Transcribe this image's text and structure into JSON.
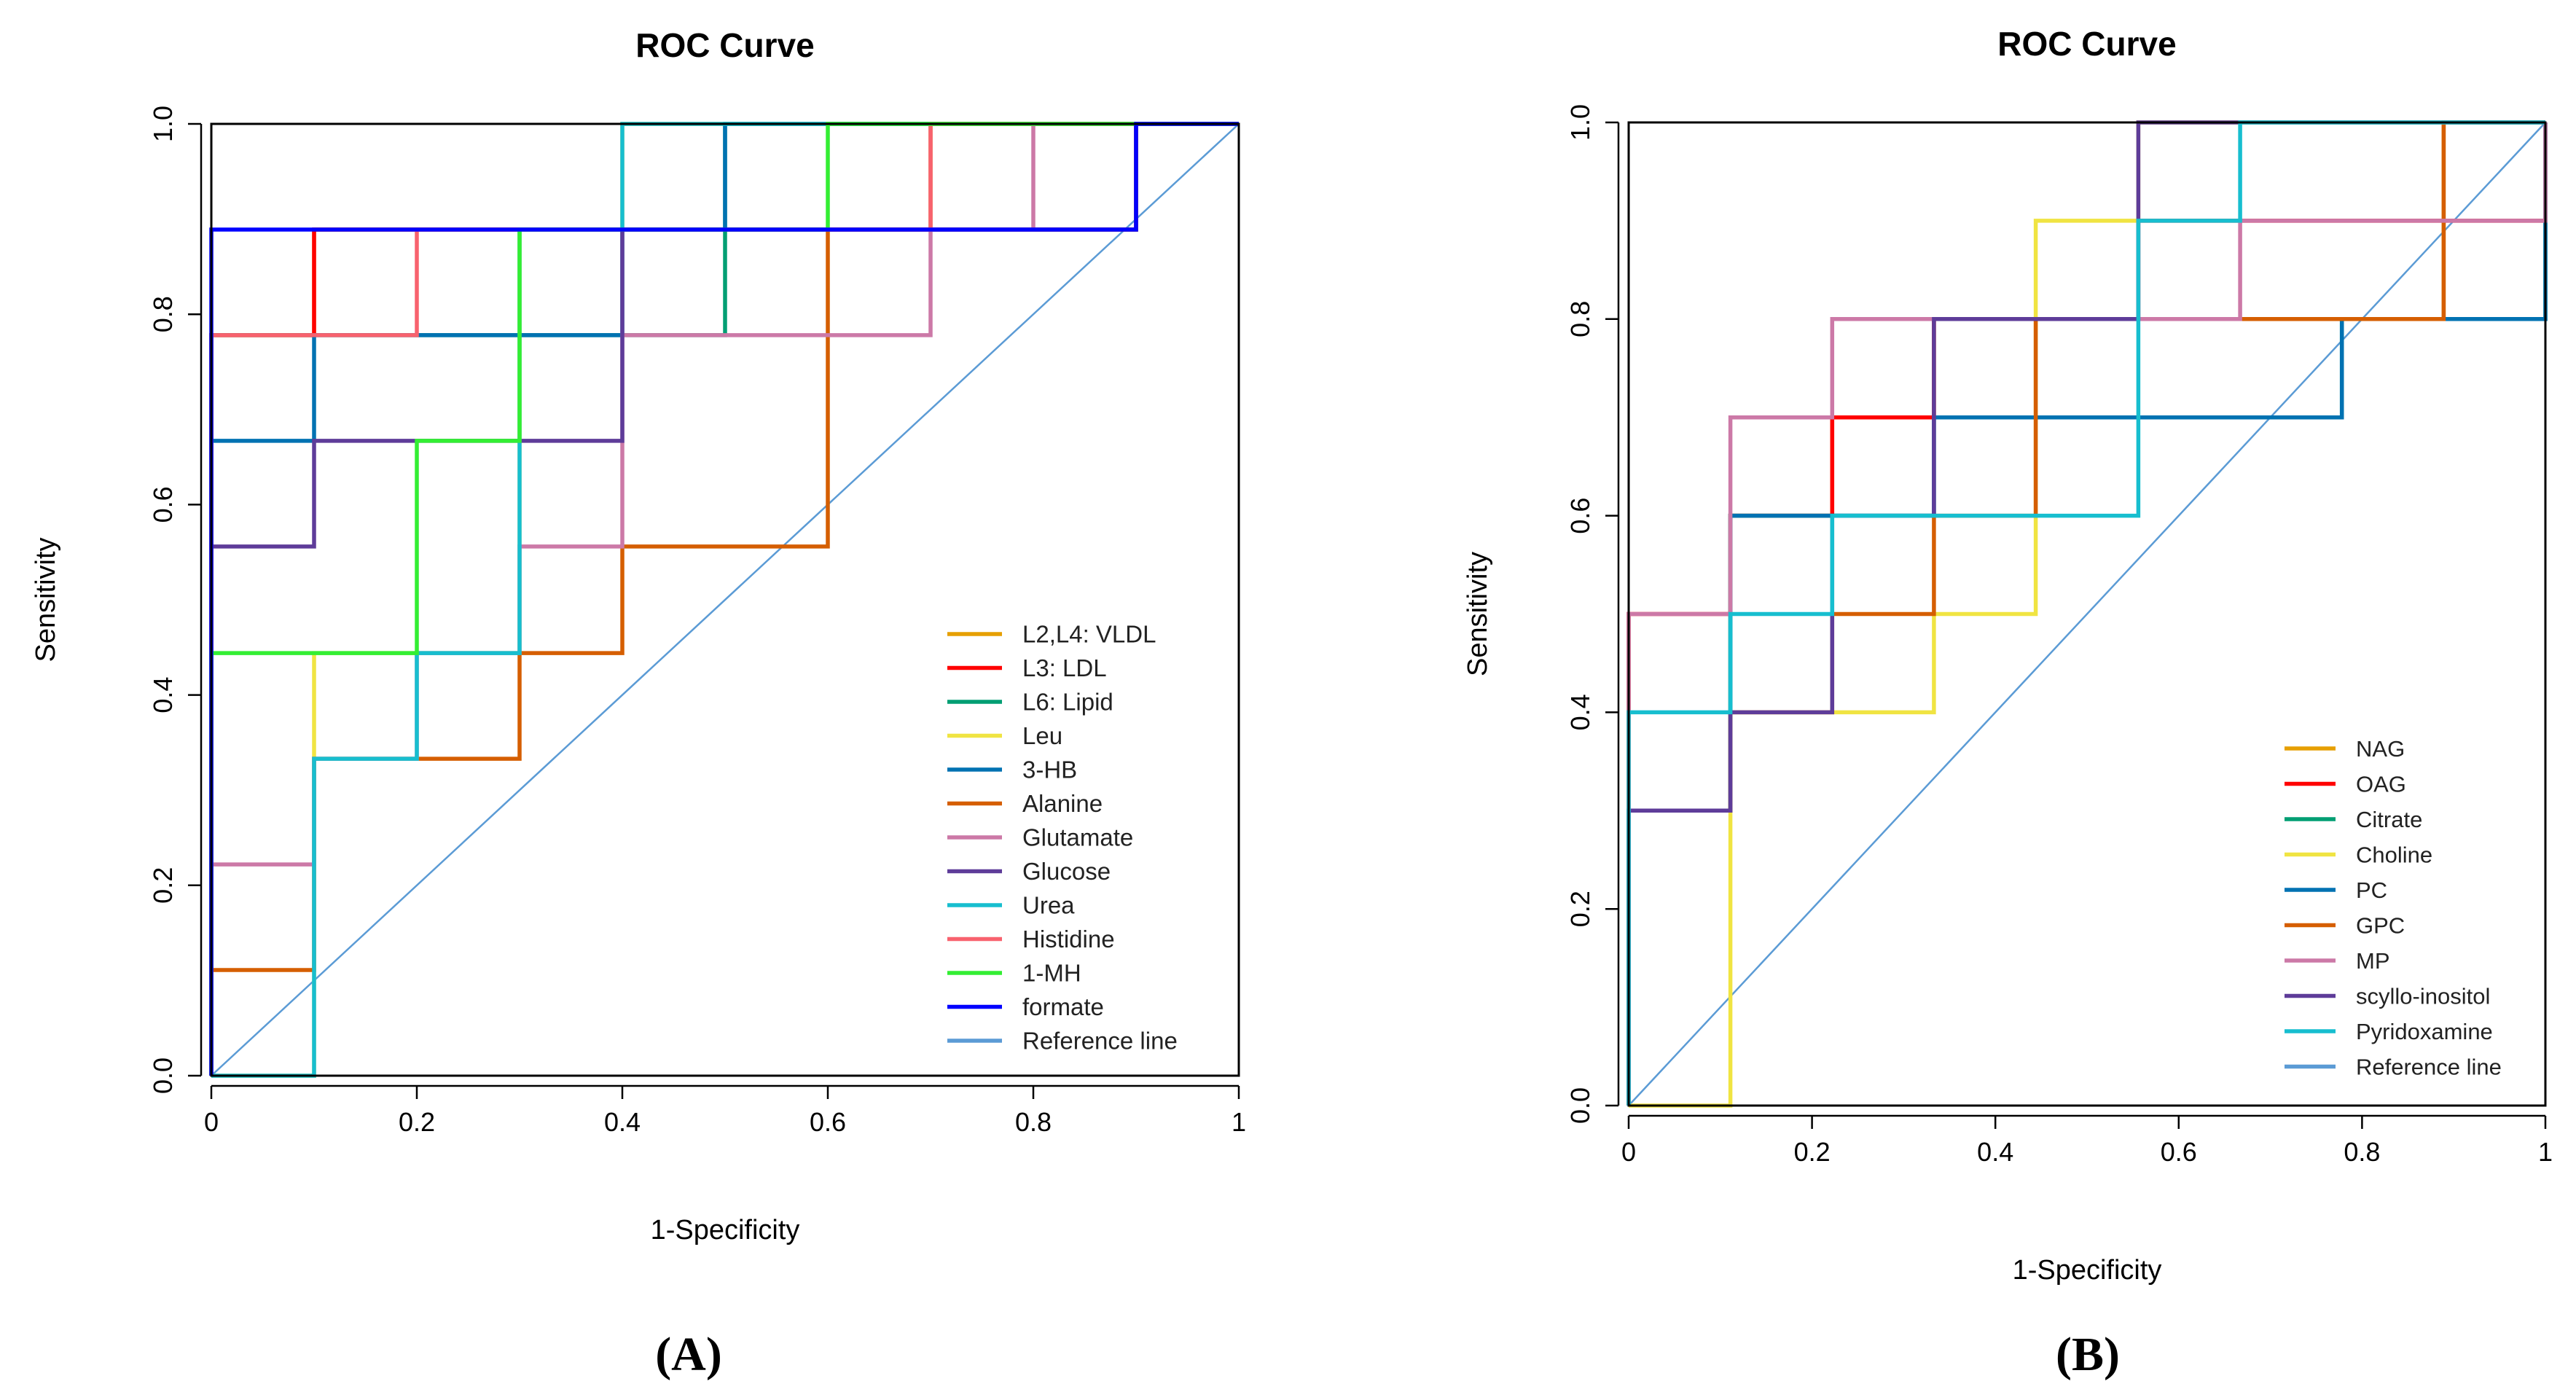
{
  "figure": {
    "panel_labels": [
      "(A)",
      "(B)"
    ]
  },
  "chart_data": [
    {
      "type": "line",
      "subtype": "roc-step",
      "title": "ROC Curve",
      "xlabel": "1-Specificity",
      "ylabel": "Sensitivity",
      "xlim": [
        0,
        1
      ],
      "ylim": [
        0,
        1
      ],
      "x_ticks": [
        "0",
        "0.2",
        "0.4",
        "0.6",
        "0.8",
        "1"
      ],
      "y_ticks": [
        "0.0",
        "0.2",
        "0.4",
        "0.6",
        "0.8",
        "1.0"
      ],
      "legend_position": "bottom-right",
      "series": [
        {
          "name": "L2,L4: VLDL",
          "color": "#E69F00",
          "points": [
            [
              0,
              0
            ],
            [
              0,
              0.778
            ],
            [
              0.1,
              0.778
            ],
            [
              0.1,
              0.889
            ],
            [
              0.9,
              0.889
            ],
            [
              0.9,
              1
            ],
            [
              1,
              1
            ]
          ]
        },
        {
          "name": "L3: LDL",
          "color": "#FF0000",
          "points": [
            [
              0,
              0
            ],
            [
              0,
              0.778
            ],
            [
              0.1,
              0.778
            ],
            [
              0.1,
              0.889
            ],
            [
              0.9,
              0.889
            ],
            [
              0.9,
              1
            ],
            [
              1,
              1
            ]
          ]
        },
        {
          "name": "L6: Lipid",
          "color": "#009E73",
          "points": [
            [
              0,
              0
            ],
            [
              0,
              0.778
            ],
            [
              0.4,
              0.778
            ],
            [
              0.5,
              0.778
            ],
            [
              0.5,
              1
            ],
            [
              1,
              1
            ]
          ]
        },
        {
          "name": "Leu",
          "color": "#F0E442",
          "points": [
            [
              0,
              0
            ],
            [
              0.1,
              0
            ],
            [
              0.1,
              0.444
            ],
            [
              0.3,
              0.444
            ],
            [
              0.3,
              0.889
            ],
            [
              0.4,
              0.889
            ],
            [
              0.4,
              1
            ],
            [
              1,
              1
            ]
          ]
        },
        {
          "name": "3-HB",
          "color": "#0072B2",
          "points": [
            [
              0,
              0
            ],
            [
              0,
              0.667
            ],
            [
              0.1,
              0.667
            ],
            [
              0.1,
              0.778
            ],
            [
              0.4,
              0.778
            ],
            [
              0.4,
              0.889
            ],
            [
              0.5,
              0.889
            ],
            [
              0.5,
              1
            ],
            [
              1,
              1
            ]
          ]
        },
        {
          "name": "Alanine",
          "color": "#D55E00",
          "points": [
            [
              0,
              0
            ],
            [
              0,
              0.111
            ],
            [
              0.1,
              0.111
            ],
            [
              0.1,
              0.333
            ],
            [
              0.3,
              0.333
            ],
            [
              0.3,
              0.444
            ],
            [
              0.4,
              0.444
            ],
            [
              0.4,
              0.556
            ],
            [
              0.6,
              0.556
            ],
            [
              0.6,
              0.889
            ],
            [
              0.7,
              0.889
            ],
            [
              0.7,
              1
            ],
            [
              1,
              1
            ]
          ]
        },
        {
          "name": "Glutamate",
          "color": "#CC79A7",
          "points": [
            [
              0,
              0
            ],
            [
              0,
              0.222
            ],
            [
              0.1,
              0.222
            ],
            [
              0.1,
              0.333
            ],
            [
              0.2,
              0.333
            ],
            [
              0.2,
              0.444
            ],
            [
              0.3,
              0.444
            ],
            [
              0.3,
              0.556
            ],
            [
              0.4,
              0.556
            ],
            [
              0.4,
              0.778
            ],
            [
              0.7,
              0.778
            ],
            [
              0.7,
              0.889
            ],
            [
              0.8,
              0.889
            ],
            [
              0.8,
              1
            ],
            [
              1,
              1
            ]
          ]
        },
        {
          "name": "Glucose",
          "color": "#5E3C99",
          "points": [
            [
              0,
              0
            ],
            [
              0,
              0.556
            ],
            [
              0.1,
              0.556
            ],
            [
              0.1,
              0.667
            ],
            [
              0.4,
              0.667
            ],
            [
              0.4,
              0.889
            ],
            [
              0.9,
              0.889
            ],
            [
              0.9,
              1
            ],
            [
              1,
              1
            ]
          ]
        },
        {
          "name": "Urea",
          "color": "#17BECF",
          "points": [
            [
              0,
              0
            ],
            [
              0.1,
              0
            ],
            [
              0.1,
              0.333
            ],
            [
              0.2,
              0.333
            ],
            [
              0.2,
              0.444
            ],
            [
              0.3,
              0.444
            ],
            [
              0.3,
              0.889
            ],
            [
              0.4,
              0.889
            ],
            [
              0.4,
              1
            ],
            [
              1,
              1
            ]
          ]
        },
        {
          "name": "Histidine",
          "color": "#F8626E",
          "points": [
            [
              0,
              0
            ],
            [
              0,
              0.778
            ],
            [
              0.2,
              0.778
            ],
            [
              0.2,
              0.889
            ],
            [
              0.7,
              0.889
            ],
            [
              0.7,
              1
            ],
            [
              1,
              1
            ]
          ]
        },
        {
          "name": "1-MH",
          "color": "#33EE33",
          "points": [
            [
              0,
              0
            ],
            [
              0,
              0.444
            ],
            [
              0.2,
              0.444
            ],
            [
              0.2,
              0.667
            ],
            [
              0.3,
              0.667
            ],
            [
              0.3,
              0.889
            ],
            [
              0.6,
              0.889
            ],
            [
              0.6,
              1
            ],
            [
              1,
              1
            ]
          ]
        },
        {
          "name": "formate",
          "color": "#0000FF",
          "points": [
            [
              0,
              0
            ],
            [
              0,
              0.889
            ],
            [
              0.9,
              0.889
            ],
            [
              0.9,
              1
            ],
            [
              1,
              1
            ]
          ]
        },
        {
          "name": "Reference line",
          "color": "#5B9BD5",
          "points": [
            [
              0,
              0
            ],
            [
              1,
              1
            ]
          ],
          "reference": true
        }
      ]
    },
    {
      "type": "line",
      "subtype": "roc-step",
      "title": "ROC Curve",
      "xlabel": "1-Specificity",
      "ylabel": "Sensitivity",
      "xlim": [
        0,
        1
      ],
      "ylim": [
        0,
        1
      ],
      "x_ticks": [
        "0",
        "0.2",
        "0.4",
        "0.6",
        "0.8",
        "1"
      ],
      "y_ticks": [
        "0.0",
        "0.2",
        "0.4",
        "0.6",
        "0.8",
        "1.0"
      ],
      "legend_position": "bottom-right",
      "series": [
        {
          "name": "NAG",
          "color": "#E69F00",
          "points": [
            [
              0,
              0
            ],
            [
              0,
              0.3
            ],
            [
              0.111,
              0.3
            ],
            [
              0.111,
              0.6
            ],
            [
              0.222,
              0.6
            ],
            [
              0.222,
              0.7
            ],
            [
              0.333,
              0.7
            ],
            [
              0.333,
              0.8
            ],
            [
              0.778,
              0.8
            ],
            [
              0.889,
              0.8
            ],
            [
              0.889,
              1
            ],
            [
              1,
              1
            ]
          ]
        },
        {
          "name": "OAG",
          "color": "#FF0000",
          "points": [
            [
              0,
              0
            ],
            [
              0,
              0.5
            ],
            [
              0.111,
              0.5
            ],
            [
              0.111,
              0.6
            ],
            [
              0.222,
              0.6
            ],
            [
              0.222,
              0.7
            ],
            [
              0.333,
              0.7
            ],
            [
              0.333,
              0.8
            ],
            [
              0.556,
              0.8
            ],
            [
              0.556,
              0.9
            ],
            [
              1,
              0.9
            ],
            [
              1,
              1
            ]
          ]
        },
        {
          "name": "Citrate",
          "color": "#009E73",
          "points": [
            [
              0,
              0
            ],
            [
              0,
              0.3
            ],
            [
              0.111,
              0.3
            ],
            [
              0.111,
              0.6
            ],
            [
              0.333,
              0.6
            ],
            [
              0.333,
              0.7
            ],
            [
              0.778,
              0.7
            ],
            [
              0.778,
              0.8
            ],
            [
              1,
              0.8
            ],
            [
              1,
              1
            ]
          ]
        },
        {
          "name": "Choline",
          "color": "#F0E442",
          "points": [
            [
              0,
              0
            ],
            [
              0.111,
              0
            ],
            [
              0.111,
              0.4
            ],
            [
              0.333,
              0.4
            ],
            [
              0.333,
              0.5
            ],
            [
              0.444,
              0.5
            ],
            [
              0.444,
              0.9
            ],
            [
              0.556,
              0.9
            ],
            [
              0.556,
              1
            ],
            [
              1,
              1
            ]
          ]
        },
        {
          "name": "PC",
          "color": "#0072B2",
          "points": [
            [
              0,
              0
            ],
            [
              0,
              0.3
            ],
            [
              0.111,
              0.3
            ],
            [
              0.111,
              0.6
            ],
            [
              0.333,
              0.6
            ],
            [
              0.333,
              0.7
            ],
            [
              0.778,
              0.7
            ],
            [
              0.778,
              0.8
            ],
            [
              1,
              0.8
            ],
            [
              1,
              1
            ]
          ]
        },
        {
          "name": "GPC",
          "color": "#D55E00",
          "points": [
            [
              0,
              0
            ],
            [
              0,
              0.3
            ],
            [
              0.111,
              0.3
            ],
            [
              0.111,
              0.4
            ],
            [
              0.222,
              0.4
            ],
            [
              0.222,
              0.5
            ],
            [
              0.333,
              0.5
            ],
            [
              0.333,
              0.6
            ],
            [
              0.444,
              0.6
            ],
            [
              0.444,
              0.8
            ],
            [
              0.889,
              0.8
            ],
            [
              0.889,
              1
            ],
            [
              1,
              1
            ]
          ]
        },
        {
          "name": "MP",
          "color": "#CC79A7",
          "points": [
            [
              0,
              0
            ],
            [
              0,
              0.5
            ],
            [
              0.111,
              0.5
            ],
            [
              0.111,
              0.7
            ],
            [
              0.222,
              0.7
            ],
            [
              0.222,
              0.8
            ],
            [
              0.667,
              0.8
            ],
            [
              0.667,
              0.9
            ],
            [
              1,
              0.9
            ],
            [
              1,
              1
            ]
          ]
        },
        {
          "name": "scyllo-inositol",
          "color": "#5E3C99",
          "points": [
            [
              0,
              0
            ],
            [
              0,
              0.3
            ],
            [
              0.111,
              0.3
            ],
            [
              0.111,
              0.4
            ],
            [
              0.222,
              0.4
            ],
            [
              0.222,
              0.6
            ],
            [
              0.333,
              0.6
            ],
            [
              0.333,
              0.8
            ],
            [
              0.556,
              0.8
            ],
            [
              0.556,
              1
            ],
            [
              1,
              1
            ]
          ]
        },
        {
          "name": "Pyridoxamine",
          "color": "#17BECF",
          "points": [
            [
              0,
              0
            ],
            [
              0,
              0.4
            ],
            [
              0.111,
              0.4
            ],
            [
              0.111,
              0.5
            ],
            [
              0.222,
              0.5
            ],
            [
              0.222,
              0.6
            ],
            [
              0.556,
              0.6
            ],
            [
              0.556,
              0.9
            ],
            [
              0.667,
              0.9
            ],
            [
              0.667,
              1
            ],
            [
              1,
              1
            ]
          ]
        },
        {
          "name": "Reference line",
          "color": "#5B9BD5",
          "points": [
            [
              0,
              0
            ],
            [
              1,
              1
            ]
          ],
          "reference": true
        }
      ]
    }
  ]
}
